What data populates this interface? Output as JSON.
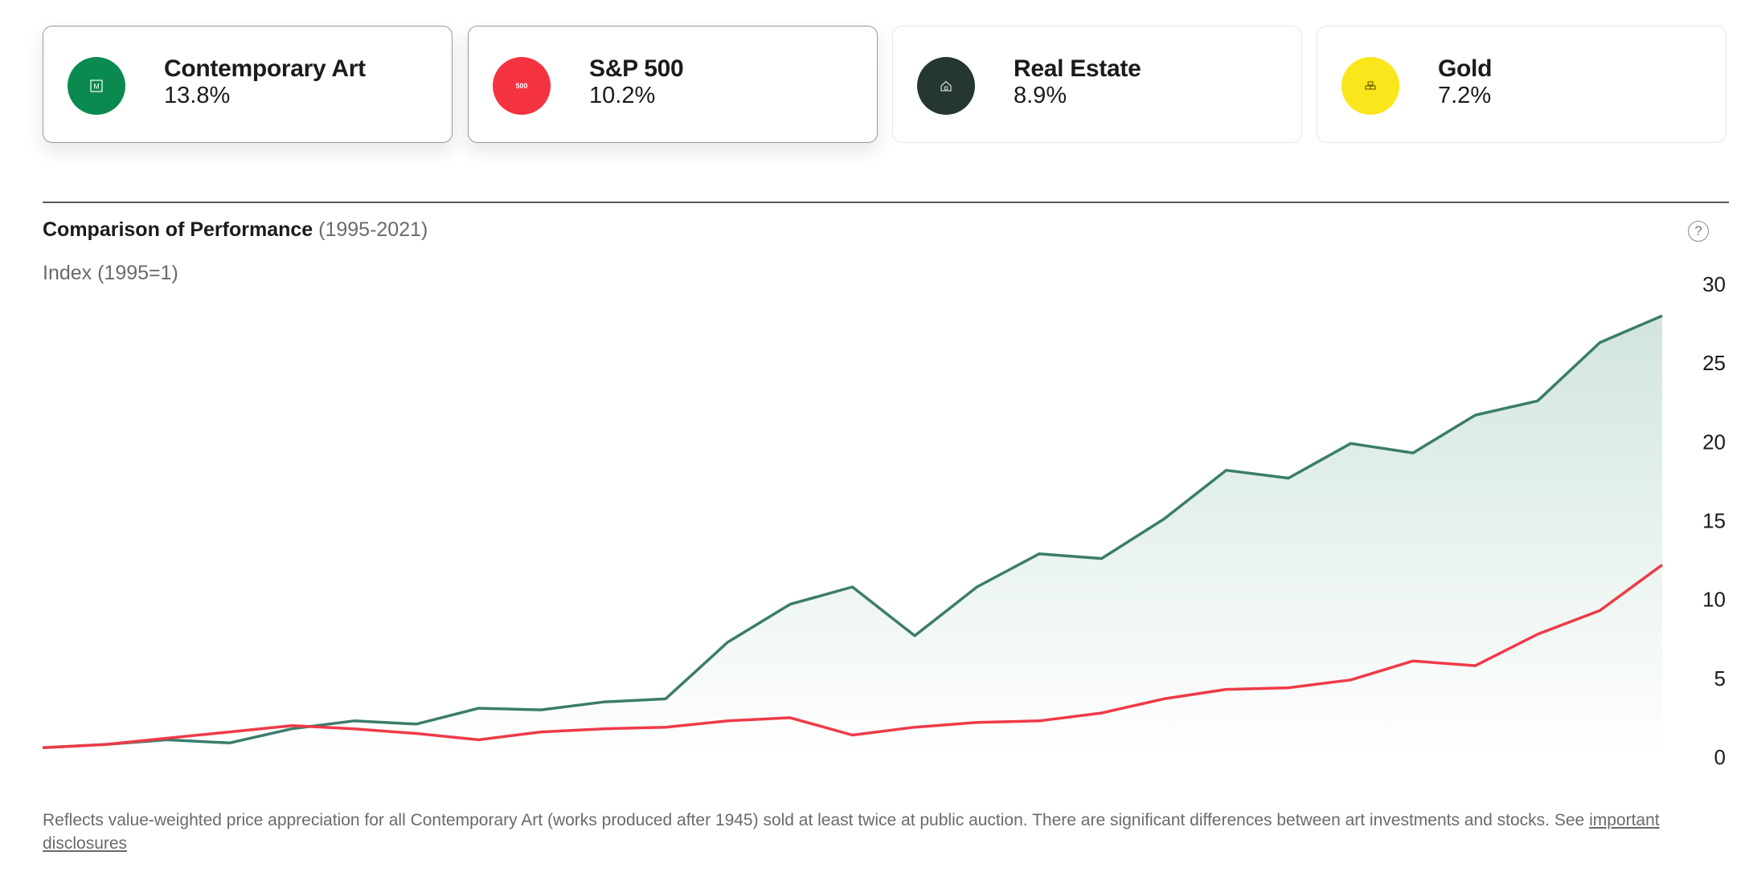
{
  "cards": [
    {
      "name": "Contemporary Art",
      "rate": "13.8%",
      "color": "#0b8a4f",
      "icon": "museum-icon",
      "icon_text": "M",
      "selected": true
    },
    {
      "name": "S&P 500",
      "rate": "10.2%",
      "color": "#f5323f",
      "icon": "sp500-icon",
      "icon_text": "500",
      "selected": true
    },
    {
      "name": "Real Estate",
      "rate": "8.9%",
      "color": "#243730",
      "icon": "house-icon",
      "icon_text": "",
      "selected": false
    },
    {
      "name": "Gold",
      "rate": "7.2%",
      "color": "#f9e61b",
      "icon": "gold-bars-icon",
      "icon_text": "",
      "selected": false
    }
  ],
  "chart_title": "Comparison of Performance",
  "chart_range": "(1995-2021)",
  "help_symbol": "?",
  "footnote_text": "Reflects value-weighted price appreciation for all Contemporary Art (works produced after 1945) sold at least twice at public auction. There are significant differences between art investments and stocks. See",
  "footnote_link": "important disclosures",
  "chart_data": {
    "type": "line",
    "ylabel": "Index (1995=1)",
    "ylim": [
      0,
      30
    ],
    "yticks": [
      0,
      5,
      10,
      15,
      20,
      25,
      30
    ],
    "y_axis_side": "right",
    "grid": false,
    "x": [
      1995,
      1996,
      1997,
      1998,
      1999,
      2000,
      2001,
      2002,
      2003,
      2004,
      2005,
      2006,
      2007,
      2008,
      2009,
      2010,
      2011,
      2012,
      2013,
      2014,
      2015,
      2016,
      2017,
      2018,
      2019,
      2020,
      2021
    ],
    "series": [
      {
        "color": "#3a7d6a",
        "fill": true,
        "values": [
          0.6,
          0.8,
          1.1,
          0.9,
          1.8,
          2.3,
          2.1,
          3.1,
          3.0,
          3.5,
          3.7,
          7.3,
          9.7,
          10.8,
          7.7,
          10.8,
          12.9,
          12.6,
          15.1,
          18.2,
          17.7,
          19.9,
          19.3,
          21.7,
          22.6,
          26.3,
          28.0
        ]
      },
      {
        "color": "#ef3a47",
        "fill": false,
        "values": [
          0.6,
          0.8,
          1.2,
          1.6,
          2.0,
          1.8,
          1.5,
          1.1,
          1.6,
          1.8,
          1.9,
          2.3,
          2.5,
          1.4,
          1.9,
          2.2,
          2.3,
          2.8,
          3.7,
          4.3,
          4.4,
          4.9,
          6.1,
          5.8,
          7.8,
          9.3,
          12.2
        ]
      }
    ]
  }
}
